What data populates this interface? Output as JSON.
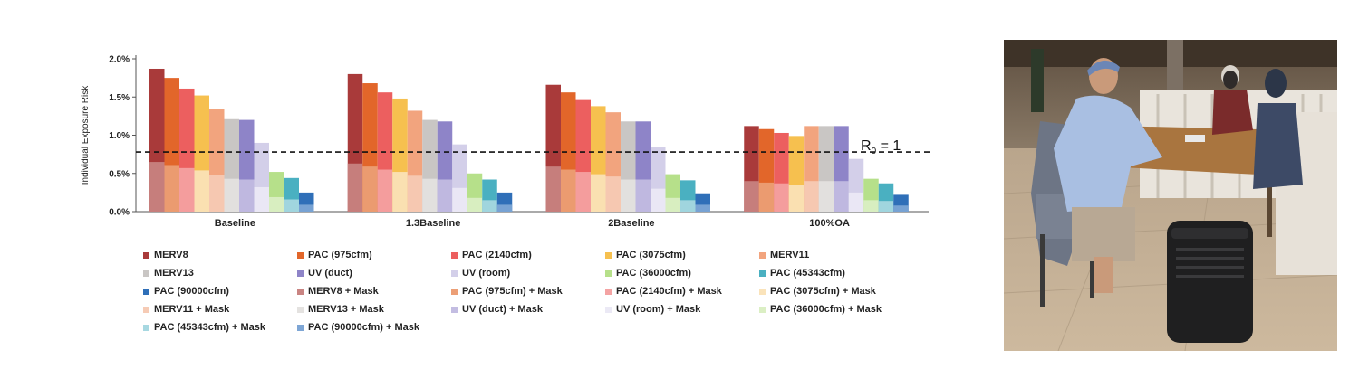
{
  "chart_data": {
    "type": "bar",
    "title": "",
    "xlabel": "",
    "ylabel": "Individual Exposure Risk",
    "ylim": [
      0,
      2.0
    ],
    "y_ticks": [
      "0.0%",
      "0.5%",
      "1.0%",
      "1.5%",
      "2.0%"
    ],
    "grid": false,
    "legend_position": "bottom",
    "categories": [
      "Baseline",
      "1.3Baseline",
      "2Baseline",
      "100%OA"
    ],
    "reference_line": {
      "value": 0.78,
      "label_main": "R",
      "label_sub": "0",
      "label_rest": " = 1",
      "style": "dashed"
    },
    "series": [
      {
        "name": "MERV8",
        "color": "#a93a3a",
        "values": [
          1.87,
          1.8,
          1.66,
          1.12
        ]
      },
      {
        "name": "PAC (975cfm)",
        "color": "#e2662a",
        "values": [
          1.75,
          1.68,
          1.56,
          1.08
        ]
      },
      {
        "name": "PAC (2140cfm)",
        "color": "#ec5f5f",
        "values": [
          1.61,
          1.56,
          1.46,
          1.03
        ]
      },
      {
        "name": "PAC (3075cfm)",
        "color": "#f6c04f",
        "values": [
          1.52,
          1.48,
          1.38,
          0.99
        ]
      },
      {
        "name": "MERV11",
        "color": "#f2a47e",
        "values": [
          1.34,
          1.32,
          1.3,
          1.12
        ]
      },
      {
        "name": "MERV13",
        "color": "#c9c6c4",
        "values": [
          1.21,
          1.2,
          1.18,
          1.12
        ]
      },
      {
        "name": "UV (duct)",
        "color": "#8e84c8",
        "values": [
          1.2,
          1.18,
          1.18,
          1.12
        ]
      },
      {
        "name": "UV (room)",
        "color": "#d3cfe9",
        "values": [
          0.9,
          0.88,
          0.84,
          0.69
        ]
      },
      {
        "name": "PAC (36000cfm)",
        "color": "#b6e08a",
        "values": [
          0.52,
          0.5,
          0.49,
          0.43
        ]
      },
      {
        "name": "PAC (45343cfm)",
        "color": "#4ab0c1",
        "values": [
          0.44,
          0.42,
          0.41,
          0.37
        ]
      },
      {
        "name": "PAC (90000cfm)",
        "color": "#2f6fb8",
        "values": [
          0.25,
          0.25,
          0.24,
          0.22
        ]
      },
      {
        "name": "MERV8 + Mask",
        "color": "#c98482",
        "values": [
          0.65,
          0.63,
          0.59,
          0.4
        ]
      },
      {
        "name": "PAC (975cfm) + Mask",
        "color": "#ec9f76",
        "values": [
          0.61,
          0.59,
          0.55,
          0.38
        ]
      },
      {
        "name": "PAC (2140cfm) + Mask",
        "color": "#f4a3a3",
        "values": [
          0.57,
          0.55,
          0.52,
          0.37
        ]
      },
      {
        "name": "PAC (3075cfm) + Mask",
        "color": "#fae3ba",
        "values": [
          0.54,
          0.52,
          0.49,
          0.35
        ]
      },
      {
        "name": "MERV11 + Mask",
        "color": "#f6cbb5",
        "values": [
          0.48,
          0.47,
          0.46,
          0.4
        ]
      },
      {
        "name": "MERV13 + Mask",
        "color": "#e4e2e0",
        "values": [
          0.43,
          0.43,
          0.42,
          0.4
        ]
      },
      {
        "name": "UV (duct) + Mask",
        "color": "#c3bde2",
        "values": [
          0.42,
          0.42,
          0.42,
          0.4
        ]
      },
      {
        "name": "UV (room) + Mask",
        "color": "#ebe9f5",
        "values": [
          0.32,
          0.31,
          0.3,
          0.25
        ]
      },
      {
        "name": "PAC (36000cfm) + Mask",
        "color": "#dbefc4",
        "values": [
          0.19,
          0.18,
          0.18,
          0.15
        ]
      },
      {
        "name": "PAC (45343cfm) + Mask",
        "color": "#a7d8e1",
        "values": [
          0.16,
          0.15,
          0.15,
          0.14
        ]
      },
      {
        "name": "PAC (90000cfm) + Mask",
        "color": "#7ea6d5",
        "values": [
          0.09,
          0.09,
          0.09,
          0.08
        ]
      }
    ]
  },
  "photo": {
    "description_icon": "restaurant-photo-icon"
  }
}
